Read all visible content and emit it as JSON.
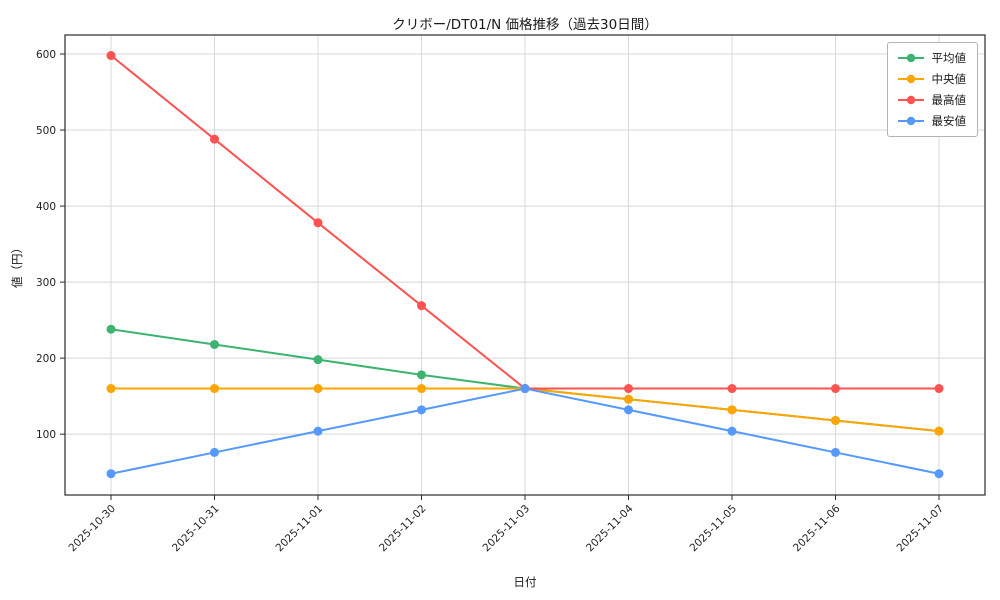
{
  "chart_data": {
    "type": "line",
    "title": "クリボー/DT01/N 価格推移（過去30日間）",
    "xlabel": "日付",
    "ylabel": "値（円）",
    "categories": [
      "2025-10-30",
      "2025-10-31",
      "2025-11-01",
      "2025-11-02",
      "2025-11-03",
      "2025-11-04",
      "2025-11-05",
      "2025-11-06",
      "2025-11-07"
    ],
    "series": [
      {
        "name": "平均値",
        "color": "#3cb371",
        "values": [
          238,
          218,
          198,
          178,
          160,
          146,
          132,
          118,
          104
        ]
      },
      {
        "name": "中央値",
        "color": "#ffa500",
        "values": [
          160,
          160,
          160,
          160,
          160,
          146,
          132,
          118,
          104
        ]
      },
      {
        "name": "最高値",
        "color": "#ff5252",
        "values": [
          598,
          488,
          378,
          269,
          160,
          160,
          160,
          160,
          160
        ]
      },
      {
        "name": "最安値",
        "color": "#5599ff",
        "values": [
          48,
          76,
          104,
          132,
          160,
          132,
          104,
          76,
          48
        ]
      }
    ],
    "yticks": [
      100,
      200,
      300,
      400,
      500,
      600
    ],
    "ylim": [
      20,
      625
    ],
    "grid": true,
    "legend_position": "upper right",
    "colors": {
      "grid": "#d8d8d8",
      "axis": "#2b2b2b",
      "tick_text": "#222222"
    }
  }
}
